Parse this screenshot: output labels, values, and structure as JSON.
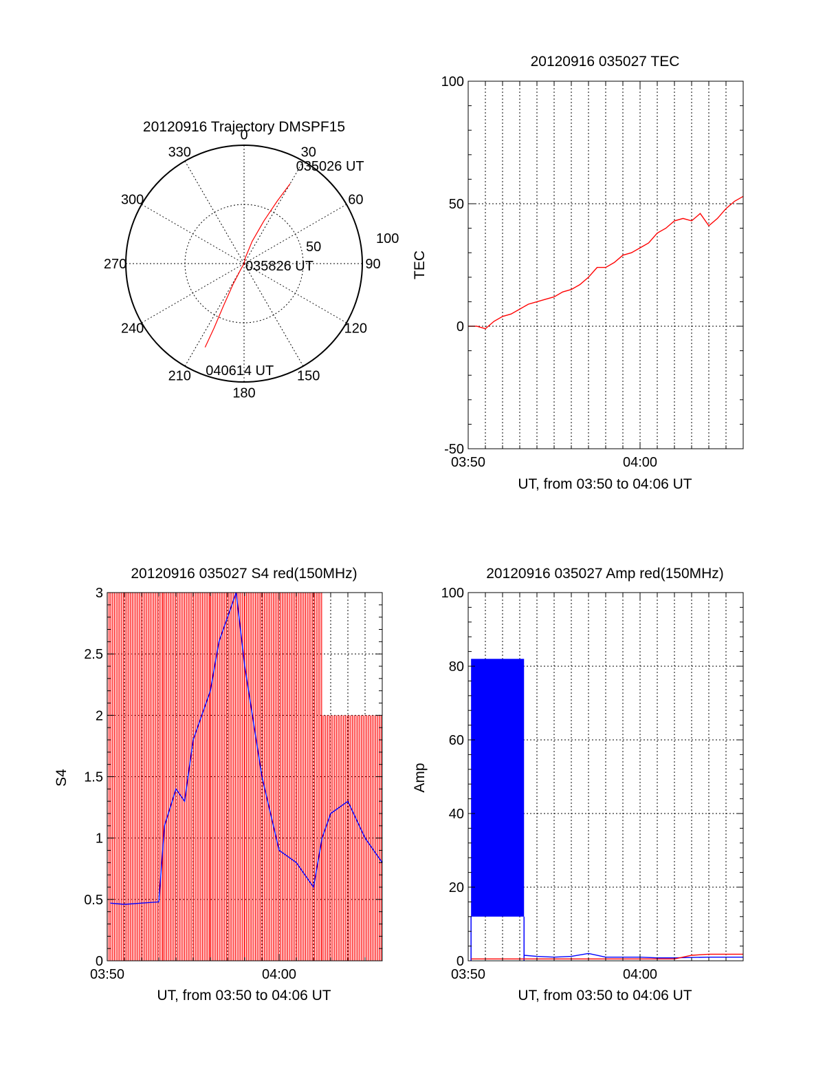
{
  "chart_data": [
    {
      "type": "polar",
      "title": "20120916 Trajectory DMSPF15",
      "angle_labels": [
        "0",
        "30",
        "60",
        "90",
        "120",
        "150",
        "180",
        "210",
        "240",
        "270",
        "300",
        "330"
      ],
      "radial_labels": [
        "50",
        "100"
      ],
      "rlim": [
        0,
        100
      ],
      "series": [
        {
          "color": "#ff0000",
          "points_az_el": [
            [
              30,
              12
            ],
            [
              28,
              30
            ],
            [
              25,
              50
            ],
            [
              20,
              70
            ],
            [
              12,
              85
            ],
            [
              0,
              90
            ],
            [
              210,
              85
            ],
            [
              208,
              70
            ],
            [
              206,
              50
            ],
            [
              205,
              30
            ],
            [
              205,
              12
            ]
          ]
        }
      ],
      "annotations": [
        {
          "text": "035026 UT",
          "az": 30,
          "r": 88
        },
        {
          "text": "035826 UT",
          "az": 90,
          "r": 3
        },
        {
          "text": "040614 UT",
          "az": 200,
          "r": 88
        }
      ]
    },
    {
      "type": "line",
      "title": "20120916 035027 TEC",
      "xlabel": "UT, from 03:50 to 04:06 UT",
      "ylabel": "TEC",
      "xlim": [
        "03:50",
        "04:06"
      ],
      "ylim": [
        -50,
        100
      ],
      "xticks": [
        "03:50",
        "04:00"
      ],
      "yticks": [
        -50,
        0,
        50,
        100
      ],
      "grid": true,
      "series": [
        {
          "color": "#ff0000",
          "x": [
            "03:50",
            "03:50:30",
            "03:51",
            "03:51:30",
            "03:52",
            "03:52:30",
            "03:53",
            "03:53:30",
            "03:54",
            "03:54:30",
            "03:55",
            "03:55:30",
            "03:56",
            "03:56:30",
            "03:57",
            "03:57:30",
            "03:58",
            "03:58:30",
            "03:59",
            "03:59:30",
            "04:00",
            "04:00:30",
            "04:01",
            "04:01:30",
            "04:02",
            "04:02:30",
            "04:03",
            "04:03:30",
            "04:04",
            "04:04:30",
            "04:05",
            "04:05:30",
            "04:06"
          ],
          "y": [
            0,
            0,
            -1,
            2,
            4,
            5,
            7,
            9,
            10,
            11,
            12,
            14,
            15,
            17,
            20,
            24,
            24,
            26,
            29,
            30,
            32,
            34,
            38,
            40,
            43,
            44,
            43,
            46,
            41,
            44,
            48,
            51,
            53
          ]
        }
      ]
    },
    {
      "type": "line",
      "title": "20120916 035027 S4 red(150MHz)",
      "xlabel": "UT, from 03:50 to 04:06 UT",
      "ylabel": "S4",
      "xlim": [
        "03:50",
        "04:06"
      ],
      "ylim": [
        0,
        3
      ],
      "xticks": [
        "03:50",
        "04:00"
      ],
      "yticks": [
        0,
        0.5,
        1,
        1.5,
        2,
        2.5,
        3
      ],
      "grid": true,
      "series": [
        {
          "color": "#ff0000",
          "segments": [
            {
              "x_start": "03:50",
              "x_end": "03:53:15",
              "level": 3.0
            },
            {
              "x_start": "03:53:15",
              "x_end": "03:56",
              "level": 3.0
            },
            {
              "x_start": "03:56",
              "x_end": "03:58",
              "level": 3.0
            },
            {
              "x_start": "03:58",
              "x_end": "04:02:30",
              "level": 3.0
            },
            {
              "x_start": "04:02:30",
              "x_end": "04:06",
              "level": 2.0
            }
          ]
        },
        {
          "color": "#0000ff",
          "x": [
            "03:50:10",
            "03:51",
            "03:52",
            "03:53",
            "03:53:20",
            "03:54",
            "03:54:30",
            "03:55",
            "03:55:30",
            "03:56",
            "03:56:30",
            "03:57",
            "03:57:30",
            "03:58",
            "03:59",
            "04:00",
            "04:01",
            "04:02",
            "04:02:30",
            "04:03",
            "04:04",
            "04:05",
            "04:06"
          ],
          "y": [
            0.47,
            0.46,
            0.47,
            0.48,
            1.1,
            1.4,
            1.3,
            1.8,
            2.0,
            2.2,
            2.6,
            2.8,
            3.0,
            2.4,
            1.5,
            0.9,
            0.8,
            0.6,
            1.0,
            1.2,
            1.3,
            1.0,
            0.8
          ]
        }
      ]
    },
    {
      "type": "line",
      "title": "20120916 035027 Amp red(150MHz)",
      "xlabel": "UT, from 03:50 to 04:06 UT",
      "ylabel": "Amp",
      "xlim": [
        "03:50",
        "04:06"
      ],
      "ylim": [
        0,
        100
      ],
      "xticks": [
        "03:50",
        "04:00"
      ],
      "yticks": [
        0,
        20,
        40,
        60,
        80,
        100
      ],
      "grid": true,
      "series": [
        {
          "color": "#0000ff",
          "band": {
            "x_start": "03:50:10",
            "x_end": "03:53:15",
            "low": 12,
            "high": 82
          },
          "x": [
            "03:53:15",
            "03:54",
            "03:55",
            "03:56",
            "03:57",
            "03:58",
            "03:59",
            "04:00",
            "04:01",
            "04:02",
            "04:03",
            "04:04",
            "04:05",
            "04:06"
          ],
          "y": [
            1.5,
            1.2,
            1.0,
            1.2,
            2.0,
            1.0,
            1.0,
            1.0,
            0.8,
            0.8,
            0.9,
            1.0,
            1.0,
            1.0
          ]
        },
        {
          "color": "#ff0000",
          "x": [
            "03:50:10",
            "03:53:15",
            "03:58",
            "04:02",
            "04:03",
            "04:04",
            "04:05",
            "04:06"
          ],
          "y": [
            0.5,
            0.5,
            0.5,
            0.5,
            1.5,
            1.8,
            1.8,
            1.8
          ]
        }
      ]
    }
  ]
}
